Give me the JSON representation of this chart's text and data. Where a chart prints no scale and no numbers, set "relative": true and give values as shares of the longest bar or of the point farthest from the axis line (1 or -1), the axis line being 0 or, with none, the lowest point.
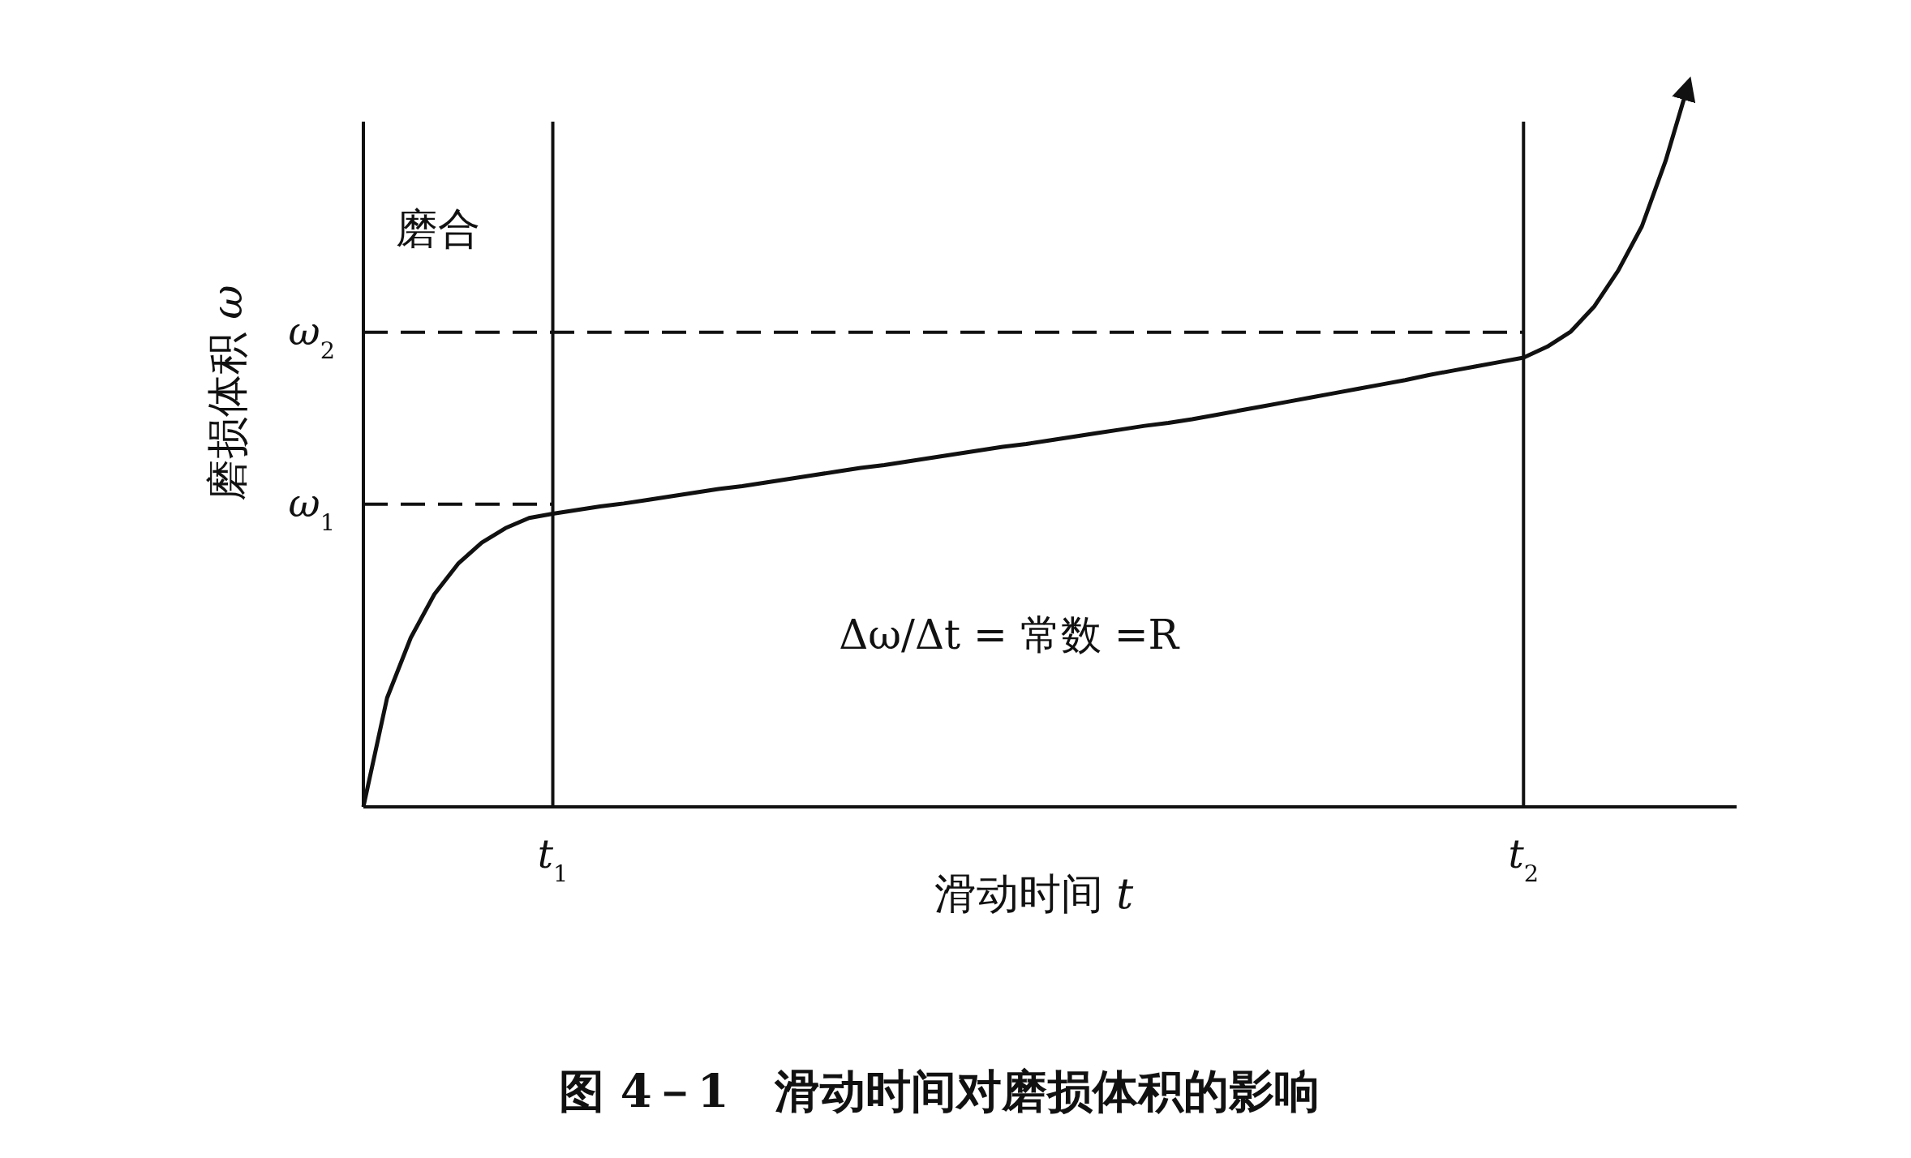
{
  "chart_data": {
    "type": "line",
    "relative": true,
    "title": "图 4－1　滑动时间对磨损体积的影响",
    "xlabel": "滑动时间 *t*",
    "ylabel": "磨损体积 *ω*",
    "categories": [
      null,
      null,
      null,
      null,
      null,
      null,
      null,
      null,
      "*t*$_{1}$",
      null,
      null,
      null,
      null,
      null,
      null,
      null,
      null,
      null,
      null,
      null,
      null,
      null,
      null,
      null,
      null,
      null,
      null,
      null,
      null,
      null,
      null,
      null,
      null,
      null,
      null,
      null,
      null,
      null,
      null,
      null,
      null,
      null,
      null,
      null,
      null,
      null,
      null,
      null,
      null,
      "*t*$_{2}$",
      null,
      null,
      null,
      null,
      null,
      null,
      null,
      null,
      null
    ],
    "values": [
      0,
      0.15,
      0.233,
      0.293,
      0.335,
      0.364,
      0.384,
      0.398,
      0.404,
      0.409,
      0.414,
      0.418,
      0.423,
      0.428,
      0.433,
      0.438,
      0.442,
      0.447,
      0.452,
      0.457,
      0.462,
      0.467,
      0.471,
      0.476,
      0.481,
      0.486,
      0.491,
      0.496,
      0.5,
      0.505,
      0.51,
      0.515,
      0.52,
      0.525,
      0.529,
      0.534,
      0.54,
      0.546,
      0.552,
      0.558,
      0.564,
      0.57,
      0.576,
      0.582,
      0.588,
      0.595,
      0.601,
      0.607,
      0.613,
      0.619,
      0.634,
      0.655,
      0.69,
      0.739,
      0.8,
      0.89,
      1,
      null,
      null
    ],
    "color": "#111111",
    "line_style": "solid",
    "marker": "none",
    "ref_lines": [
      {
        "axis": "x",
        "value": "*t*$_{1}$",
        "line_style": "solid"
      },
      {
        "axis": "x",
        "value": "*t*$_{2}$",
        "line_style": "solid"
      },
      {
        "axis": "y",
        "value": 0.417,
        "label": "*ω*$_{1}$",
        "line_style": "dashed"
      },
      {
        "axis": "y",
        "value": 0.654,
        "label": "*ω*$_{2}$",
        "line_style": "dashed"
      }
    ],
    "annotations": [
      "磨合",
      "Δω/Δt = 常数 =R"
    ]
  }
}
